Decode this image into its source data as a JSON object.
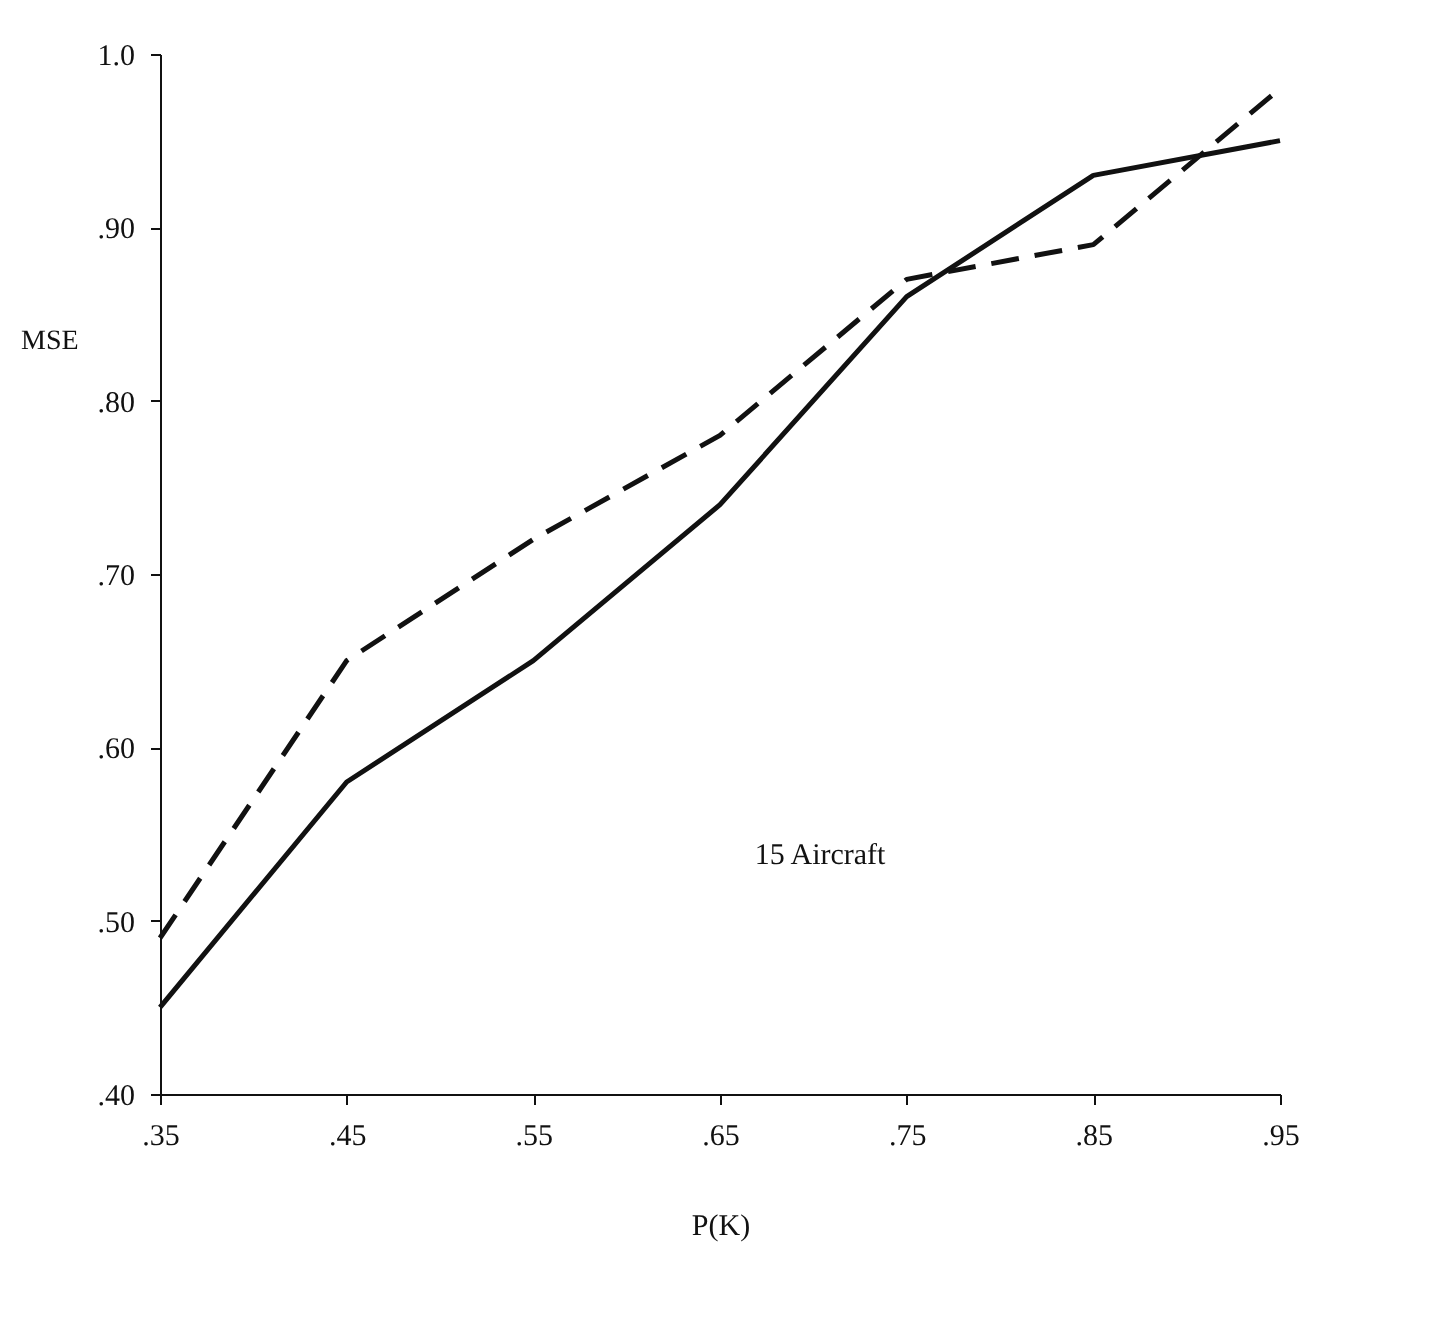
{
  "chart_data": {
    "type": "line",
    "xlabel": "P(K)",
    "ylabel": "MSE",
    "annotations": [
      "15 Aircraft"
    ],
    "x": [
      0.35,
      0.45,
      0.55,
      0.65,
      0.75,
      0.85,
      0.95
    ],
    "series": [
      {
        "color": "#111111",
        "line_style": "solid",
        "values": [
          0.45,
          0.58,
          0.65,
          0.74,
          0.86,
          0.93,
          0.95
        ]
      },
      {
        "color": "#111111",
        "line_style": "dashed",
        "values": [
          0.49,
          0.65,
          0.72,
          0.78,
          0.87,
          0.89,
          0.98
        ]
      }
    ],
    "xlim": [
      0.35,
      0.95
    ],
    "xticks": [
      {
        "value": 0.35,
        "label": ".35"
      },
      {
        "value": 0.45,
        "label": ".45"
      },
      {
        "value": 0.55,
        "label": ".55"
      },
      {
        "value": 0.65,
        "label": ".65"
      },
      {
        "value": 0.75,
        "label": ".75"
      },
      {
        "value": 0.85,
        "label": ".85"
      },
      {
        "value": 0.95,
        "label": ".95"
      }
    ],
    "ylim": [
      0.4,
      1.0
    ],
    "yticks": [
      {
        "value": 0.4,
        "label": ".40"
      },
      {
        "value": 0.5,
        "label": ".50"
      },
      {
        "value": 0.6,
        "label": ".60"
      },
      {
        "value": 0.7,
        "label": ".70"
      },
      {
        "value": 0.8,
        "label": ".80"
      },
      {
        "value": 0.9,
        "label": ".90"
      },
      {
        "value": 1.0,
        "label": "1.0"
      }
    ],
    "grid": false,
    "marker": "none"
  }
}
